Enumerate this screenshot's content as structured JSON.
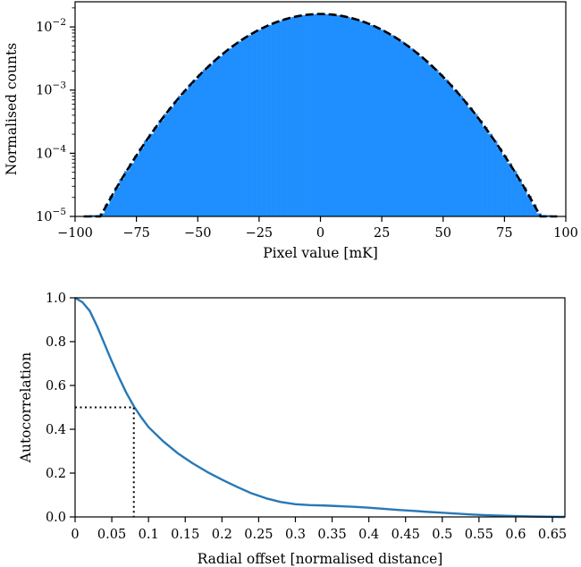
{
  "chart_data": [
    {
      "type": "bar",
      "scale_y": "log",
      "xlabel": "Pixel value [mK]",
      "ylabel": "Normalised counts",
      "xlim": [
        -100,
        100
      ],
      "ylim": [
        1e-05,
        0.025
      ],
      "x_ticks": [
        -100,
        -75,
        -50,
        -25,
        0,
        25,
        50,
        75,
        100
      ],
      "x_tick_labels": [
        "−100",
        "−75",
        "−50",
        "−25",
        "0",
        "25",
        "50",
        "75",
        "100"
      ],
      "y_ticks": [
        1e-05,
        0.0001,
        0.001,
        0.01
      ],
      "y_tick_labels": [
        {
          "base": "10",
          "exp": "−5"
        },
        {
          "base": "10",
          "exp": "−4"
        },
        {
          "base": "10",
          "exp": "−3"
        },
        {
          "base": "10",
          "exp": "−2"
        }
      ],
      "histogram": {
        "bin_width": 2,
        "x_start": -94,
        "x_end": 94,
        "color": "#1f8fff",
        "note_shape": "approximately gaussian"
      },
      "fit_curve": {
        "style": "dashed",
        "color": "#000000",
        "peak": 0.016,
        "sigma": 23.35,
        "mean": 0
      }
    },
    {
      "type": "line",
      "xlabel": "Radial offset [normalised distance]",
      "ylabel": "Autocorrelation",
      "xlim": [
        0,
        0.667
      ],
      "ylim": [
        0,
        1.0
      ],
      "x_ticks": [
        0,
        0.05,
        0.1,
        0.15,
        0.2,
        0.25,
        0.3,
        0.35,
        0.4,
        0.45,
        0.5,
        0.55,
        0.6,
        0.65
      ],
      "x_tick_labels": [
        "0",
        "0.05",
        "0.1",
        "0.15",
        "0.2",
        "0.25",
        "0.3",
        "0.35",
        "0.4",
        "0.45",
        "0.5",
        "0.55",
        "0.6",
        "0.65"
      ],
      "y_ticks": [
        0,
        0.2,
        0.4,
        0.6,
        0.8,
        1.0
      ],
      "y_tick_labels": [
        "0.0",
        "0.2",
        "0.4",
        "0.6",
        "0.8",
        "1.0"
      ],
      "series": [
        {
          "color": "#2878b5",
          "x": [
            0,
            0.01,
            0.02,
            0.03,
            0.04,
            0.05,
            0.06,
            0.07,
            0.08,
            0.09,
            0.1,
            0.12,
            0.14,
            0.16,
            0.18,
            0.2,
            0.22,
            0.24,
            0.26,
            0.28,
            0.3,
            0.32,
            0.34,
            0.36,
            0.38,
            0.4,
            0.42,
            0.44,
            0.46,
            0.48,
            0.5,
            0.52,
            0.54,
            0.56,
            0.58,
            0.6,
            0.62,
            0.64,
            0.66,
            0.667
          ],
          "y": [
            1.0,
            0.98,
            0.94,
            0.87,
            0.79,
            0.71,
            0.635,
            0.565,
            0.505,
            0.455,
            0.41,
            0.345,
            0.29,
            0.245,
            0.205,
            0.17,
            0.138,
            0.108,
            0.085,
            0.068,
            0.058,
            0.054,
            0.052,
            0.049,
            0.046,
            0.042,
            0.037,
            0.032,
            0.028,
            0.023,
            0.019,
            0.015,
            0.011,
            0.008,
            0.006,
            0.004,
            0.002,
            0.001,
            0.0,
            0.0
          ]
        }
      ],
      "marker_lines": {
        "style": "dotted",
        "x": 0.08,
        "y": 0.5
      }
    }
  ]
}
